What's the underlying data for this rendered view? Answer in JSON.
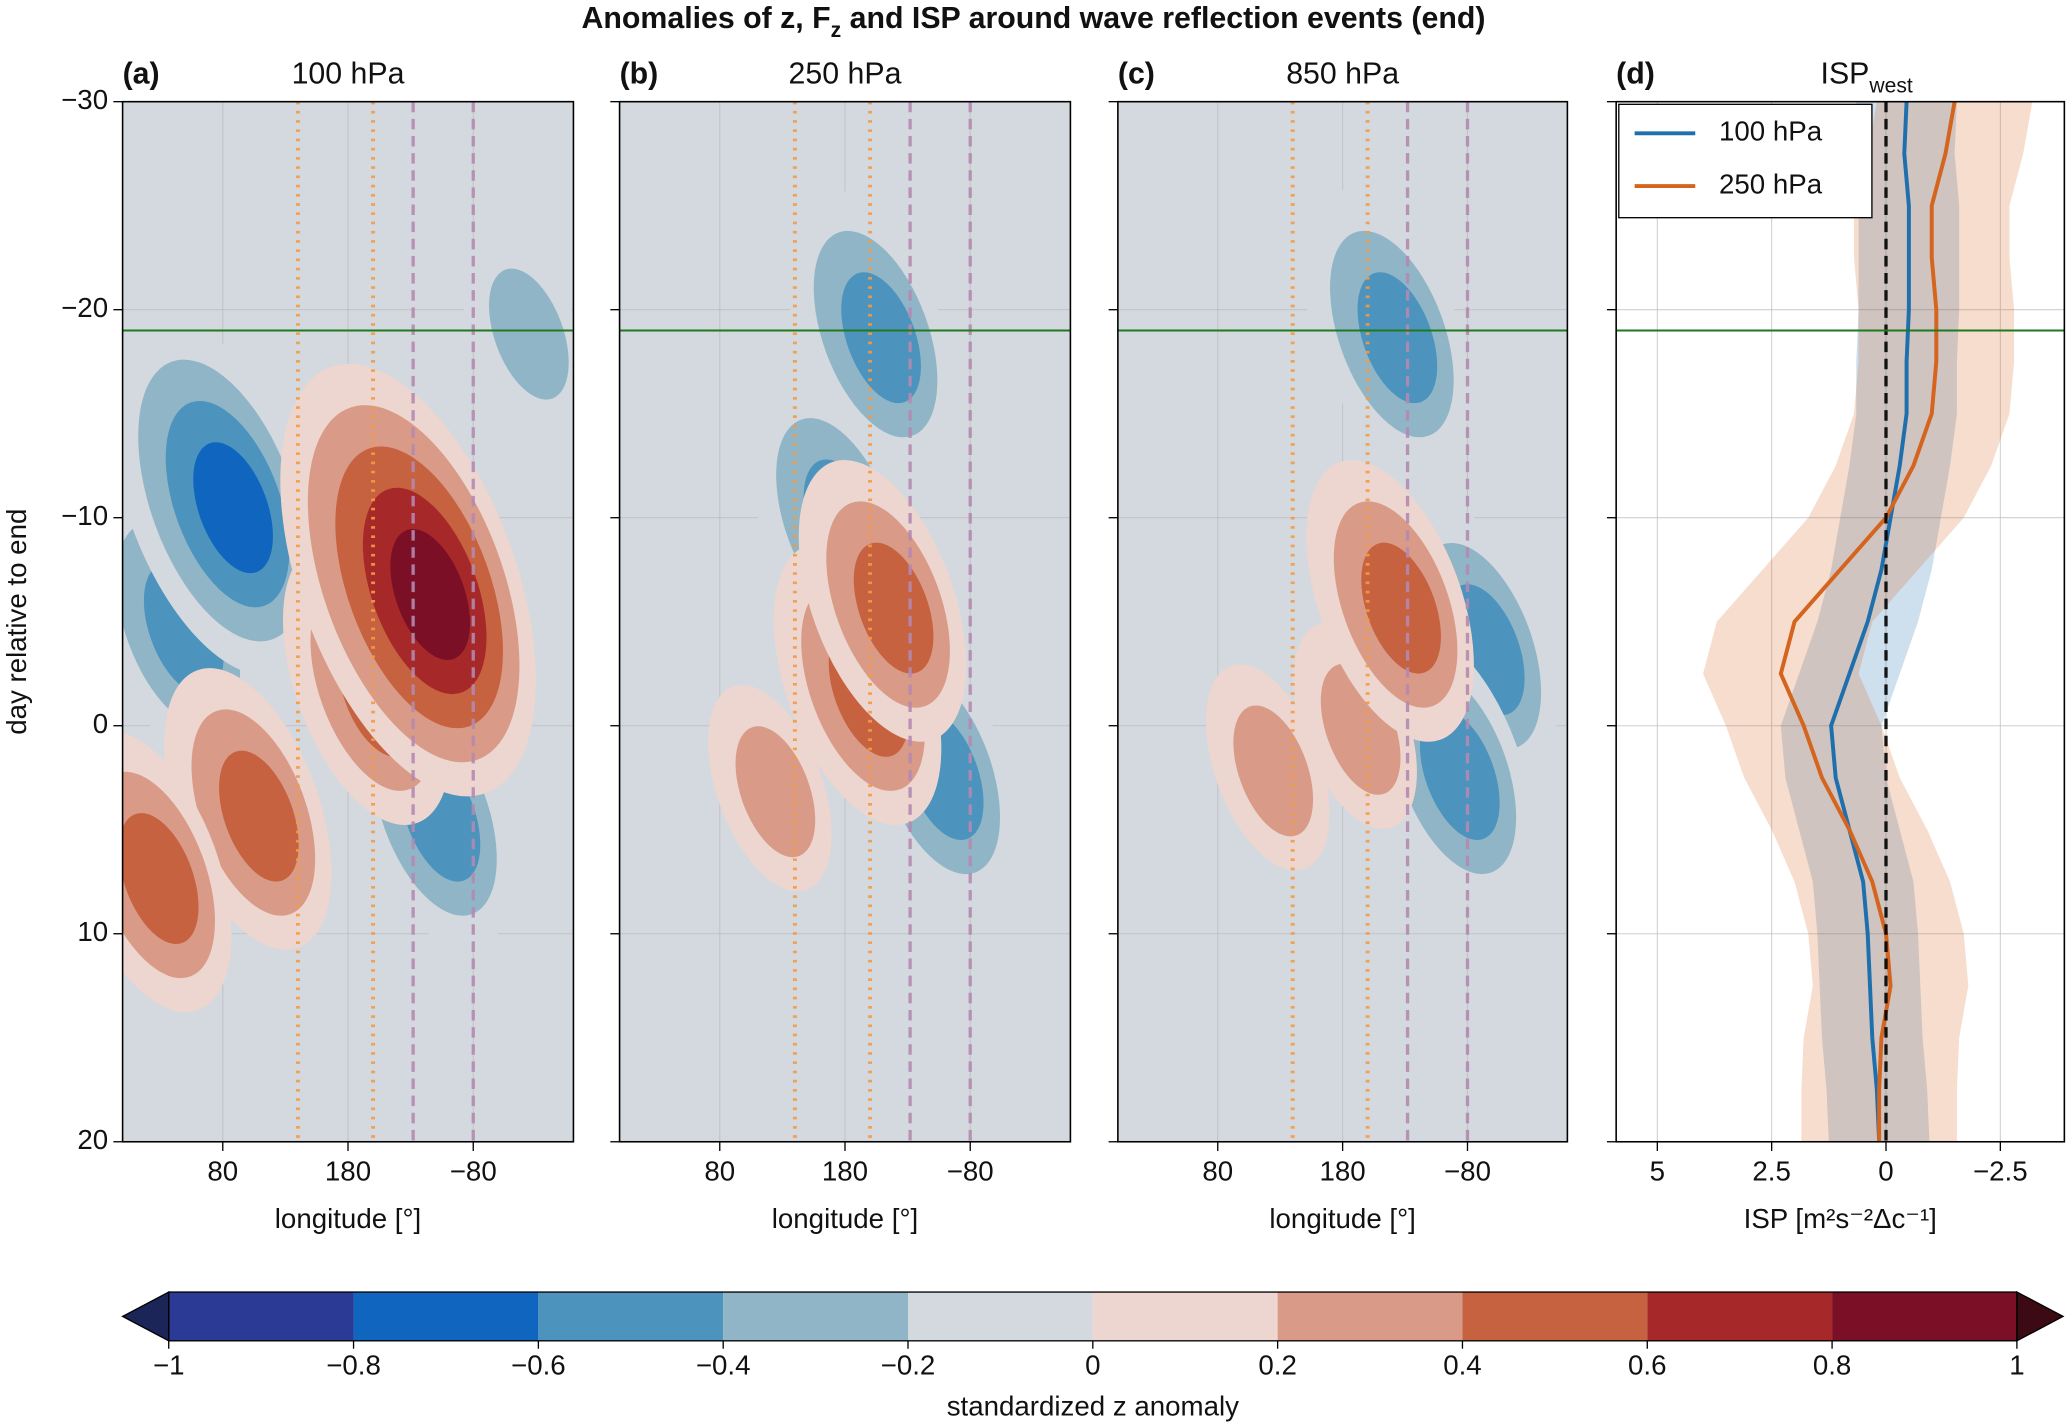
{
  "title": [
    "Anomalies of z, F",
    "z",
    " and ISP around wave reflection events (end)"
  ],
  "chart_data": [
    {
      "type": "contour",
      "panel_label": "(a)",
      "title": "100 hPa",
      "xlabel": "longitude [°]",
      "ylabel": "day relative to end",
      "xlim": [
        0,
        360
      ],
      "xticks": [
        80,
        180,
        {
          "value": 280,
          "label": "−80"
        }
      ],
      "ylim": [
        -30,
        20
      ],
      "yticks": [
        {
          "value": -30,
          "label": "−30"
        },
        {
          "value": -20,
          "label": "−20"
        },
        {
          "value": -10,
          "label": "−10"
        },
        0,
        10,
        20
      ],
      "grid": true,
      "hline": {
        "value": -19,
        "color": "#1f7a1f"
      },
      "vlines": [
        {
          "value": 140,
          "color": "#f39a45",
          "style": "dotted"
        },
        {
          "value": 200,
          "color": "#f39a45",
          "style": "dotted"
        },
        {
          "value": 232,
          "color": "#b48ab0",
          "style": "dashed"
        },
        {
          "value": 280,
          "color": "#b48ab0",
          "style": "dashed"
        }
      ],
      "features": [
        {
          "lon": 40,
          "day": -5,
          "value": -0.5
        },
        {
          "lon": 75,
          "day": -11,
          "value": -0.7
        },
        {
          "lon": 320,
          "day": -19,
          "value": -0.4
        },
        {
          "lon": 245,
          "day": 4,
          "value": -0.5
        },
        {
          "lon": 100,
          "day": 4,
          "value": 0.6
        },
        {
          "lon": 20,
          "day": 7,
          "value": 0.5
        },
        {
          "lon": 195,
          "day": -2,
          "value": 0.6
        },
        {
          "lon": 228,
          "day": -7,
          "value": 0.9
        }
      ]
    },
    {
      "type": "contour",
      "panel_label": "(b)",
      "title": "250 hPa",
      "xlabel": "longitude [°]",
      "xlim": [
        0,
        360
      ],
      "xticks": [
        80,
        180,
        {
          "value": 280,
          "label": "−80"
        }
      ],
      "ylim": [
        -30,
        20
      ],
      "yticks": [
        -30,
        -20,
        -10,
        0,
        10,
        20
      ],
      "grid": true,
      "hline": {
        "value": -19,
        "color": "#1f7a1f"
      },
      "vlines": [
        {
          "value": 140,
          "color": "#f39a45",
          "style": "dotted"
        },
        {
          "value": 200,
          "color": "#f39a45",
          "style": "dotted"
        },
        {
          "value": 232,
          "color": "#b48ab0",
          "style": "dashed"
        },
        {
          "value": 280,
          "color": "#b48ab0",
          "style": "dashed"
        }
      ],
      "features": [
        {
          "lon": 170,
          "day": -10,
          "value": -0.5
        },
        {
          "lon": 200,
          "day": -19,
          "value": -0.5
        },
        {
          "lon": 250,
          "day": 2,
          "value": -0.5
        },
        {
          "lon": 120,
          "day": 3,
          "value": 0.4
        },
        {
          "lon": 190,
          "day": -2,
          "value": 0.6
        },
        {
          "lon": 210,
          "day": -6,
          "value": 0.6
        }
      ]
    },
    {
      "type": "contour",
      "panel_label": "(c)",
      "title": "850 hPa",
      "xlabel": "longitude [°]",
      "xlim": [
        0,
        360
      ],
      "xticks": [
        80,
        180,
        {
          "value": 280,
          "label": "−80"
        }
      ],
      "ylim": [
        -30,
        20
      ],
      "yticks": [
        -30,
        -20,
        -10,
        0,
        10,
        20
      ],
      "grid": true,
      "hline": {
        "value": -19,
        "color": "#1f7a1f"
      },
      "vlines": [
        {
          "value": 140,
          "color": "#f39a45",
          "style": "dotted"
        },
        {
          "value": 200,
          "color": "#f39a45",
          "style": "dotted"
        },
        {
          "value": 232,
          "color": "#b48ab0",
          "style": "dashed"
        },
        {
          "value": 280,
          "color": "#b48ab0",
          "style": "dashed"
        }
      ],
      "features": [
        {
          "lon": 215,
          "day": -19,
          "value": -0.6
        },
        {
          "lon": 285,
          "day": -4,
          "value": -0.5
        },
        {
          "lon": 265,
          "day": 2,
          "value": -0.5
        },
        {
          "lon": 120,
          "day": 2,
          "value": 0.4
        },
        {
          "lon": 190,
          "day": 0,
          "value": 0.4
        },
        {
          "lon": 218,
          "day": -6,
          "value": 0.6
        }
      ]
    },
    {
      "type": "line",
      "panel_label": "(d)",
      "title": [
        "ISP",
        "west"
      ],
      "xlabel": "ISP [m²s⁻²Δc⁻¹]",
      "xlim": [
        5.9,
        -3.9
      ],
      "xticks": [
        5,
        2.5,
        0,
        {
          "value": -2.5,
          "label": "−2.5"
        }
      ],
      "ylim": [
        -30,
        20
      ],
      "yticks": [
        -30,
        -20,
        -10,
        0,
        10,
        20
      ],
      "grid": true,
      "hline": {
        "value": -19,
        "color": "#1f7a1f"
      },
      "vlines": [
        {
          "value": 0,
          "color": "#000000",
          "style": "dashed"
        }
      ],
      "legend": "upper left",
      "y": [
        -30,
        -27.5,
        -25,
        -22.5,
        -20,
        -17.5,
        -15,
        -12.5,
        -10,
        -7.5,
        -5,
        -2.5,
        0,
        2.5,
        5,
        7.5,
        10,
        12.5,
        15,
        17.5,
        20
      ],
      "series": [
        {
          "name": "100 hPa",
          "color": "#1f6fad",
          "values": [
            -0.45,
            -0.4,
            -0.5,
            -0.5,
            -0.5,
            -0.45,
            -0.45,
            -0.3,
            -0.1,
            0.1,
            0.4,
            0.8,
            1.2,
            1.1,
            0.8,
            0.5,
            0.4,
            0.35,
            0.3,
            0.2,
            0.15
          ],
          "lower": [
            -1.55,
            -1.5,
            -1.6,
            -1.6,
            -1.6,
            -1.55,
            -1.55,
            -1.4,
            -1.2,
            -1.0,
            -0.7,
            -0.3,
            0.1,
            0.0,
            -0.3,
            -0.6,
            -0.7,
            -0.75,
            -0.8,
            -0.9,
            -0.95
          ],
          "upper": [
            0.65,
            0.7,
            0.6,
            0.6,
            0.6,
            0.65,
            0.65,
            0.8,
            1.0,
            1.2,
            1.5,
            1.9,
            2.3,
            2.2,
            1.9,
            1.6,
            1.5,
            1.45,
            1.4,
            1.3,
            1.25
          ]
        },
        {
          "name": "250 hPa",
          "color": "#d4641e",
          "values": [
            -1.5,
            -1.3,
            -1.0,
            -1.0,
            -1.1,
            -1.1,
            -1.0,
            -0.6,
            0.0,
            1.0,
            2.0,
            2.3,
            1.8,
            1.4,
            0.8,
            0.3,
            0.0,
            -0.1,
            0.1,
            0.15,
            0.15
          ],
          "lower": [
            -3.2,
            -3.0,
            -2.7,
            -2.7,
            -2.8,
            -2.8,
            -2.7,
            -2.3,
            -1.7,
            -0.7,
            0.3,
            0.6,
            0.1,
            -0.3,
            -0.9,
            -1.4,
            -1.7,
            -1.8,
            -1.6,
            -1.55,
            -1.55
          ],
          "upper": [
            0.2,
            0.4,
            0.7,
            0.7,
            0.6,
            0.6,
            0.7,
            1.1,
            1.7,
            2.7,
            3.7,
            4.0,
            3.5,
            3.1,
            2.5,
            2.0,
            1.7,
            1.6,
            1.8,
            1.85,
            1.85
          ]
        }
      ]
    },
    {
      "type": "colorbar",
      "xlabel": "standardized z anomaly",
      "xlim": [
        -1,
        1
      ],
      "xticks": [
        {
          "value": -1,
          "label": "−1"
        },
        {
          "value": -0.8,
          "label": "−0.8"
        },
        {
          "value": -0.6,
          "label": "−0.6"
        },
        {
          "value": -0.4,
          "label": "−0.4"
        },
        {
          "value": -0.2,
          "label": "−0.2"
        },
        0,
        0.2,
        0.4,
        0.6,
        0.8,
        1
      ],
      "colors": [
        "#2b3a94",
        "#1065bf",
        "#4c93bd",
        "#90b5c6",
        "#d3d9de",
        "#ecd6cf",
        "#d99b87",
        "#c6623f",
        "#a72828",
        "#7a0f25"
      ],
      "under_color": "#1b2558",
      "over_color": "#3b0a13"
    }
  ]
}
